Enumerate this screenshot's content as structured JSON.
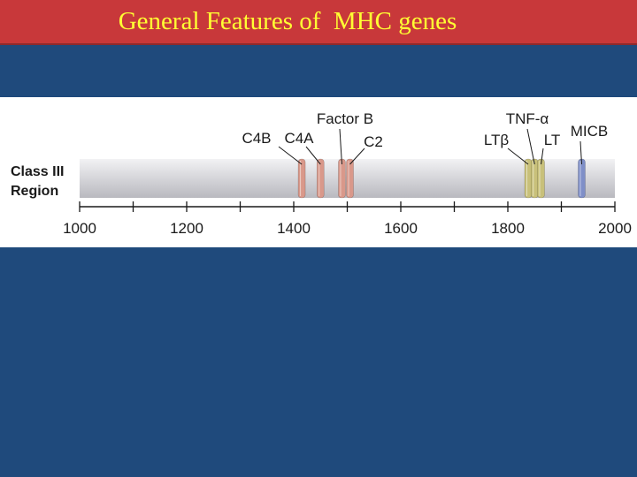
{
  "slide": {
    "title": "General Features of  MHC genes"
  },
  "figure": {
    "region_label_line1": "Class III",
    "region_label_line2": "Region",
    "axis": {
      "min": 1000,
      "max": 2000,
      "major_ticks": [
        1000,
        1200,
        1400,
        1600,
        1800,
        2000
      ],
      "minor_step": 100
    },
    "genes": [
      {
        "name": "C4B",
        "position": 1415,
        "color": "#d9988a"
      },
      {
        "name": "C4A",
        "position": 1450,
        "color": "#d9988a"
      },
      {
        "name": "Factor B",
        "position": 1490,
        "color": "#d9988a"
      },
      {
        "name": "C2",
        "position": 1505,
        "color": "#d9988a"
      },
      {
        "name": "LTβ",
        "position": 1838,
        "color": "#c8c07a"
      },
      {
        "name": "TNF-α",
        "position": 1850,
        "color": "#c8c07a"
      },
      {
        "name": "LT",
        "position": 1862,
        "color": "#c8c07a"
      },
      {
        "name": "MICB",
        "position": 1938,
        "color": "#7f8fc8"
      }
    ],
    "colors": {
      "bar": "#d4d4d8",
      "complement_genes": "#d9988a",
      "tnf_cluster": "#c8c07a",
      "micb": "#7f8fc8"
    }
  }
}
